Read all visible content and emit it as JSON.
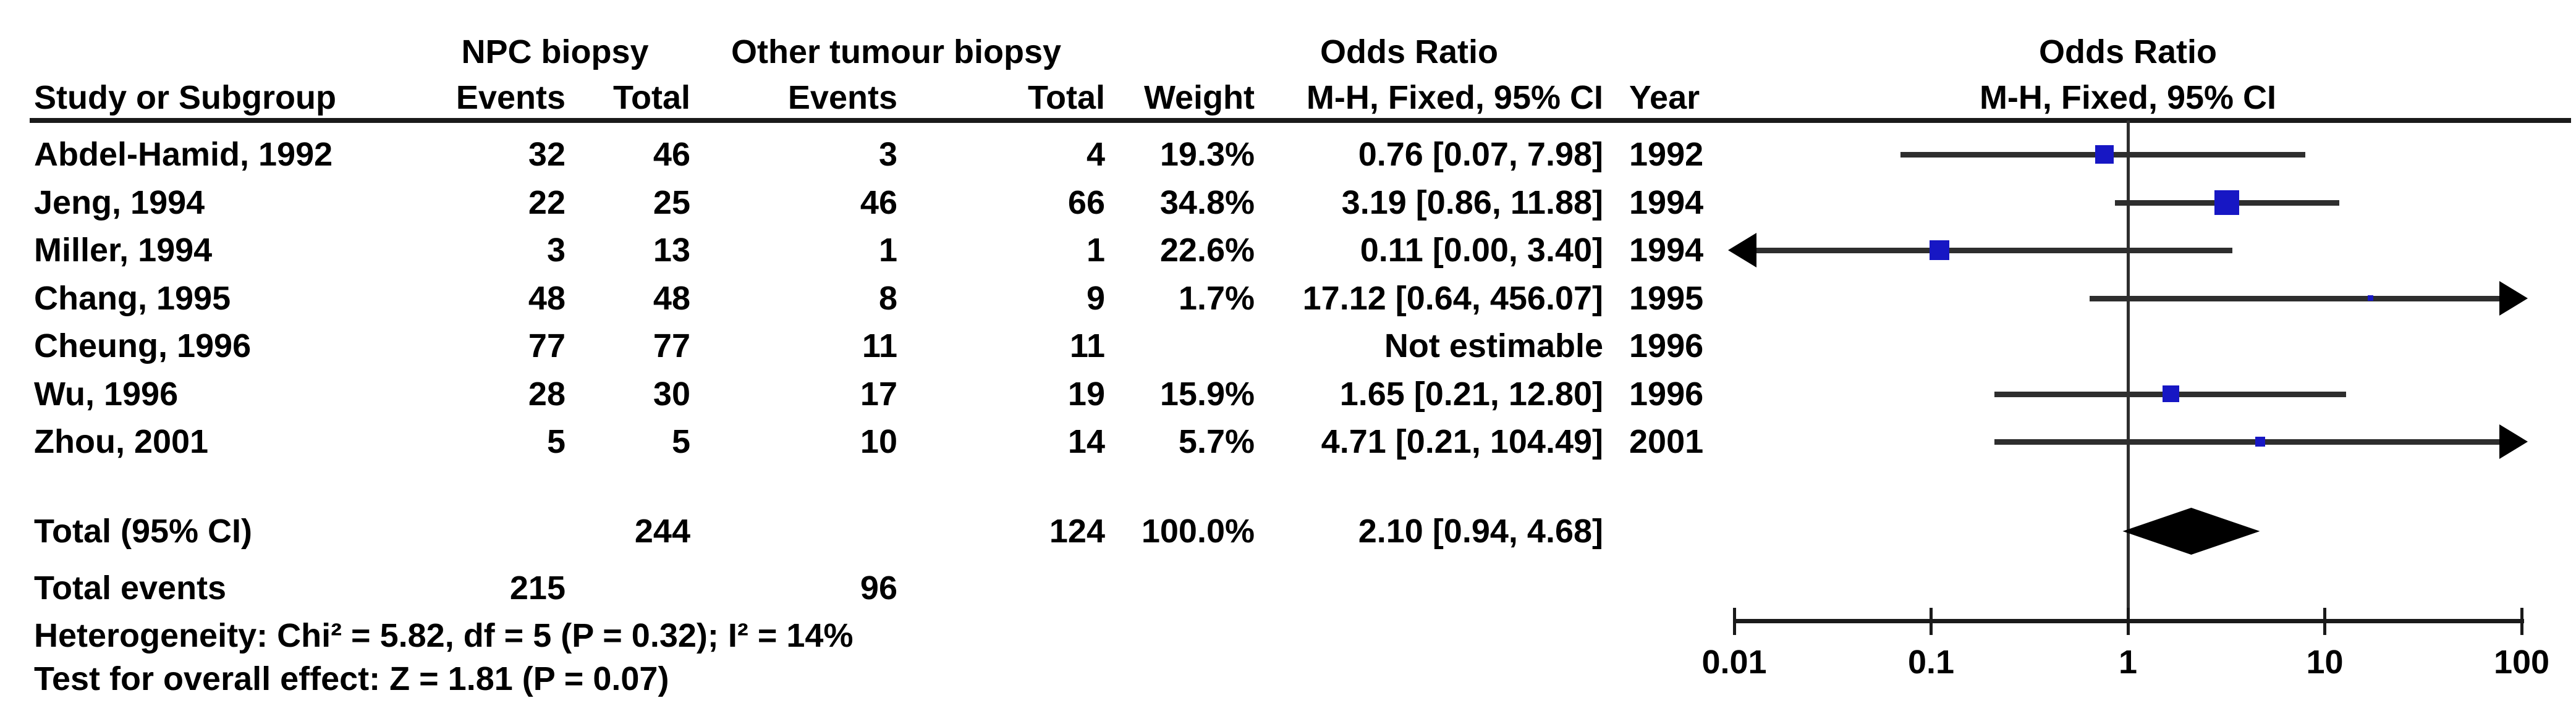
{
  "figure_bg": "#ffffff",
  "colors": {
    "marker_blue": "#1717c4",
    "ci_line": "#2e2e2e",
    "diamond": "#000000",
    "axis": "#1a1a1a",
    "text": "#000000"
  },
  "header": {
    "study_col": "Study or Subgroup",
    "group1": "NPC biopsy",
    "group2": "Other tumour biopsy",
    "events_col": "Events",
    "total_col": "Total",
    "weight_col": "Weight",
    "or_title": "Odds Ratio",
    "or_subtitle": "M-H, Fixed, 95% CI",
    "year_col": "Year"
  },
  "rows": [
    {
      "study": "Abdel-Hamid, 1992",
      "npc_events": "32",
      "npc_total": "46",
      "other_events": "3",
      "other_total": "4",
      "weight": "19.3%",
      "ci": "0.76 [0.07, 7.98]",
      "year": "1992"
    },
    {
      "study": "Jeng, 1994",
      "npc_events": "22",
      "npc_total": "25",
      "other_events": "46",
      "other_total": "66",
      "weight": "34.8%",
      "ci": "3.19 [0.86, 11.88]",
      "year": "1994"
    },
    {
      "study": "Miller, 1994",
      "npc_events": "3",
      "npc_total": "13",
      "other_events": "1",
      "other_total": "1",
      "weight": "22.6%",
      "ci": "0.11 [0.00, 3.40]",
      "year": "1994"
    },
    {
      "study": "Chang, 1995",
      "npc_events": "48",
      "npc_total": "48",
      "other_events": "8",
      "other_total": "9",
      "weight": "1.7%",
      "ci": "17.12 [0.64, 456.07]",
      "year": "1995"
    },
    {
      "study": "Cheung, 1996",
      "npc_events": "77",
      "npc_total": "77",
      "other_events": "11",
      "other_total": "11",
      "weight": "",
      "ci": "Not estimable",
      "year": "1996"
    },
    {
      "study": "Wu, 1996",
      "npc_events": "28",
      "npc_total": "30",
      "other_events": "17",
      "other_total": "19",
      "weight": "15.9%",
      "ci": "1.65 [0.21, 12.80]",
      "year": "1996"
    },
    {
      "study": "Zhou, 2001",
      "npc_events": "5",
      "npc_total": "5",
      "other_events": "10",
      "other_total": "14",
      "weight": "5.7%",
      "ci": "4.71 [0.21, 104.49]",
      "year": "2001"
    }
  ],
  "totals": {
    "label": "Total (95% CI)",
    "npc_total": "244",
    "other_total": "124",
    "weight": "100.0%",
    "ci": "2.10 [0.94, 4.68]",
    "events_label": "Total events",
    "npc_events": "215",
    "other_events": "96"
  },
  "footnotes": {
    "heterogeneity": "Heterogeneity: Chi² = 5.82, df = 5 (P = 0.32); I² = 14%",
    "overall_effect": "Test for overall effect: Z = 1.81 (P = 0.07)"
  },
  "axis_labels": [
    "0.01",
    "0.1",
    "1",
    "10",
    "100"
  ],
  "chart_data": {
    "type": "scatter",
    "subtype": "forest-plot",
    "effect_measure": "Odds Ratio, M-H, Fixed, 95% CI",
    "x_scale": "log",
    "x_range": [
      0.01,
      100
    ],
    "x_ticks": [
      0.01,
      0.1,
      1,
      10,
      100
    ],
    "null_line": 1,
    "studies": [
      {
        "label": "Abdel-Hamid, 1992",
        "or": 0.76,
        "ci_low": 0.07,
        "ci_high": 7.98,
        "weight_pct": 19.3,
        "year": 1992
      },
      {
        "label": "Jeng, 1994",
        "or": 3.19,
        "ci_low": 0.86,
        "ci_high": 11.88,
        "weight_pct": 34.8,
        "year": 1994
      },
      {
        "label": "Miller, 1994",
        "or": 0.11,
        "ci_low": 0.0,
        "ci_high": 3.4,
        "weight_pct": 22.6,
        "year": 1994
      },
      {
        "label": "Chang, 1995",
        "or": 17.12,
        "ci_low": 0.64,
        "ci_high": 456.07,
        "weight_pct": 1.7,
        "year": 1995
      },
      {
        "label": "Cheung, 1996",
        "or": null,
        "ci_low": null,
        "ci_high": null,
        "weight_pct": null,
        "year": 1996,
        "not_estimable": true
      },
      {
        "label": "Wu, 1996",
        "or": 1.65,
        "ci_low": 0.21,
        "ci_high": 12.8,
        "weight_pct": 15.9,
        "year": 1996
      },
      {
        "label": "Zhou, 2001",
        "or": 4.71,
        "ci_low": 0.21,
        "ci_high": 104.49,
        "weight_pct": 5.7,
        "year": 2001
      }
    ],
    "total": {
      "label": "Total (95% CI)",
      "or": 2.1,
      "ci_low": 0.94,
      "ci_high": 4.68,
      "weight_pct": 100.0
    }
  }
}
